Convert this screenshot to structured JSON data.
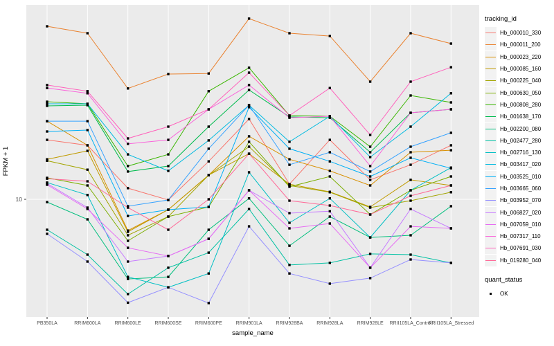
{
  "figure": {
    "bg": "#FFFFFF",
    "panel_bg": "#EBEBEB",
    "grid_color": "#FFFFFF",
    "axis_text_color": "#4D4D4D",
    "axis_title_color": "#000000",
    "point_color": "#000000"
  },
  "chart_data": {
    "type": "line",
    "title": "",
    "xlabel": "sample_name",
    "ylabel": "FPKM + 1",
    "y_scale": "log10",
    "y_tick_label": "10",
    "y_tick_values": [
      10
    ],
    "ylim_fpkm_plus_1": [
      1,
      600
    ],
    "grid": true,
    "legend_position": "right",
    "categories": [
      "PB350LA",
      "RRIM600LA",
      "RRIM600LE",
      "RRIM600SE",
      "RRIM600PE",
      "RRIM901LA",
      "RRIM928BA",
      "RRIM928LA",
      "RRIM928LE",
      "RRII105LA_Control",
      "RRII105LA_Stressed"
    ],
    "series": [
      {
        "name": "Hb_000010_330",
        "color": "#F8766D",
        "values": [
          37.4,
          33.1,
          12.8,
          9.85,
          23.2,
          59.3,
          14.0,
          37.4,
          15.4,
          21.5,
          33.1
        ]
      },
      {
        "name": "Hb_000011_200",
        "color": "#EA8331",
        "values": [
          464,
          398,
          117,
          161,
          163,
          550,
          398,
          374,
          136,
          398,
          316
        ]
      },
      {
        "name": "Hb_000023_220",
        "color": "#D89000",
        "values": [
          56.6,
          33.1,
          5.0,
          7.94,
          17.1,
          40.4,
          24.3,
          18.8,
          13.6,
          28.4,
          29.7
        ]
      },
      {
        "name": "Hb_000085_160",
        "color": "#C09B00",
        "values": [
          24.3,
          29.3,
          4.86,
          7.94,
          17.1,
          27.5,
          14.0,
          11.8,
          8.44,
          15.4,
          13.6
        ]
      },
      {
        "name": "Hb_000225_040",
        "color": "#A3A500",
        "values": [
          23.5,
          19.3,
          4.5,
          6.81,
          17.1,
          32.1,
          13.6,
          11.7,
          8.32,
          9.7,
          11.7
        ]
      },
      {
        "name": "Hb_000630_050",
        "color": "#7CAE00",
        "values": [
          16.1,
          13.6,
          3.98,
          6.81,
          8.44,
          35.8,
          13.2,
          16.6,
          7.13,
          12.2,
          16.6
        ]
      },
      {
        "name": "Hb_000808_280",
        "color": "#39B600",
        "values": [
          87.1,
          83.2,
          20.9,
          27.1,
          110,
          185,
          64.1,
          63.1,
          32.1,
          100,
          85.8
        ]
      },
      {
        "name": "Hb_001638_170",
        "color": "#00BB4E",
        "values": [
          79.4,
          80.6,
          18.5,
          20.9,
          50.1,
          113,
          62.2,
          61.1,
          28.4,
          68.1,
          73.6
        ]
      },
      {
        "name": "Hb_002200_080",
        "color": "#00BF7D",
        "values": [
          9.4,
          6.41,
          1.71,
          1.79,
          5.09,
          10.2,
          3.57,
          6.81,
          4.29,
          4.5,
          8.58
        ]
      },
      {
        "name": "Hb_002477_280",
        "color": "#00C1A3",
        "values": [
          5.09,
          2.93,
          1.22,
          2.19,
          3.06,
          8.07,
          2.33,
          2.44,
          2.98,
          2.93,
          2.44
        ]
      },
      {
        "name": "Hb_002716_130",
        "color": "#00BFC4",
        "values": [
          14.5,
          11.0,
          1.79,
          1.42,
          1.93,
          18.2,
          5.93,
          10.2,
          4.29,
          12.2,
          20.2
        ]
      },
      {
        "name": "Hb_003417_020",
        "color": "#00BAE0",
        "values": [
          83.2,
          83.2,
          27.1,
          18.8,
          36.9,
          80.6,
          35.8,
          63.1,
          25.5,
          50.1,
          105
        ]
      },
      {
        "name": "Hb_003525_010",
        "color": "#00B0F6",
        "values": [
          45.0,
          46.4,
          6.91,
          7.94,
          8.44,
          77.2,
          30.7,
          23.2,
          16.6,
          25.1,
          19.9
        ]
      },
      {
        "name": "Hb_003665_060",
        "color": "#35A2FF",
        "values": [
          56.6,
          56.6,
          8.58,
          9.85,
          30.7,
          80.6,
          21.5,
          28.4,
          18.5,
          32.1,
          43.7
        ]
      },
      {
        "name": "Hb_003952_070",
        "color": "#9590FF",
        "values": [
          4.65,
          2.51,
          1.01,
          1.42,
          1.0,
          5.49,
          1.93,
          1.54,
          1.74,
          2.63,
          2.44
        ]
      },
      {
        "name": "Hb_006827_020",
        "color": "#C77CFF",
        "values": [
          14.2,
          8.32,
          2.51,
          2.84,
          4.16,
          12.2,
          7.36,
          7.67,
          2.19,
          8.07,
          5.25
        ]
      },
      {
        "name": "Hb_007059_010",
        "color": "#E76BF3",
        "values": [
          13.8,
          8.07,
          3.41,
          2.84,
          4.16,
          12.2,
          5.25,
          5.84,
          2.19,
          5.49,
          5.25
        ]
      },
      {
        "name": "Hb_007317_110",
        "color": "#FA62DB",
        "values": [
          118,
          105,
          34.2,
          37.4,
          73.6,
          126,
          61.1,
          63.1,
          20.9,
          68.1,
          73.6
        ]
      },
      {
        "name": "Hb_007691_030",
        "color": "#FF62BC",
        "values": [
          126,
          110,
          38.6,
          50.1,
          73.6,
          166,
          64.1,
          118,
          41.7,
          136,
          187
        ]
      },
      {
        "name": "Hb_019280_040",
        "color": "#FF6A98",
        "values": [
          15.8,
          14.9,
          8.32,
          5.09,
          10.0,
          27.5,
          9.7,
          8.71,
          7.13,
          10.8,
          13.6
        ]
      }
    ],
    "legend": {
      "series_title": "tracking_id",
      "status_title": "quant_status",
      "status_items": [
        {
          "label": "OK",
          "shape": "filled-square",
          "color": "#000000"
        }
      ]
    }
  }
}
